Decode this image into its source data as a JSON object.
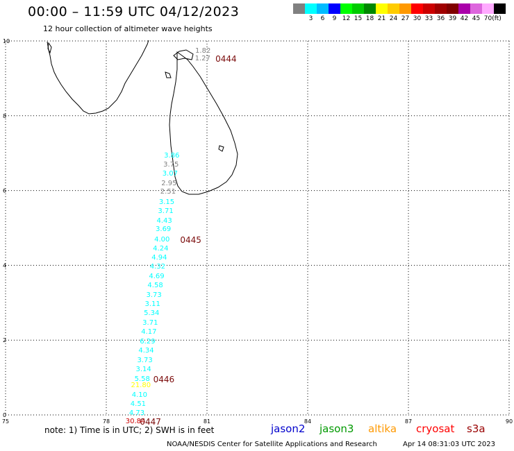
{
  "header": {
    "title": "00:00 – 11:59 UTC 04/12/2023",
    "subtitle": "12 hour collection of altimeter wave heights"
  },
  "legend": {
    "swatches": [
      {
        "color": "#808080",
        "label": ""
      },
      {
        "color": "#00ffff",
        "label": "3"
      },
      {
        "color": "#00bbff",
        "label": "6"
      },
      {
        "color": "#0000ff",
        "label": "9"
      },
      {
        "color": "#00ff00",
        "label": "12"
      },
      {
        "color": "#00cc00",
        "label": "15"
      },
      {
        "color": "#008800",
        "label": "18"
      },
      {
        "color": "#ffff00",
        "label": "21"
      },
      {
        "color": "#ffcc00",
        "label": "24"
      },
      {
        "color": "#ff9900",
        "label": "27"
      },
      {
        "color": "#ff0000",
        "label": "30"
      },
      {
        "color": "#cc0000",
        "label": "33"
      },
      {
        "color": "#a00000",
        "label": "36"
      },
      {
        "color": "#800000",
        "label": "39"
      },
      {
        "color": "#aa00aa",
        "label": "42"
      },
      {
        "color": "#dd66dd",
        "label": "45"
      },
      {
        "color": "#ffaaff",
        "label": "70"
      },
      {
        "color": "#000000",
        "label": "(ft)"
      }
    ]
  },
  "map": {
    "x_ticks": [
      "75",
      "78",
      "81",
      "84",
      "87",
      "90"
    ],
    "y_ticks": [
      "10",
      "8",
      "6",
      "4",
      "2",
      "0"
    ],
    "grid": true,
    "lon_range": [
      75,
      90
    ],
    "lat_range": [
      0,
      10
    ]
  },
  "swh_readings": [
    {
      "value": "1.82",
      "color": "#808080",
      "lon": 80.88,
      "lat": 9.72
    },
    {
      "value": "1.27",
      "color": "#808080",
      "lon": 80.87,
      "lat": 9.52
    },
    {
      "value": "3.86",
      "color": "#00ffff",
      "lon": 79.95,
      "lat": 6.92
    },
    {
      "value": "3.75",
      "color": "#808080",
      "lon": 79.93,
      "lat": 6.68
    },
    {
      "value": "3.07",
      "color": "#00ffff",
      "lon": 79.9,
      "lat": 6.43
    },
    {
      "value": "2.95",
      "color": "#808080",
      "lon": 79.87,
      "lat": 6.18
    },
    {
      "value": "2.51",
      "color": "#808080",
      "lon": 79.84,
      "lat": 5.95
    },
    {
      "value": "3.15",
      "color": "#00ffff",
      "lon": 79.8,
      "lat": 5.68
    },
    {
      "value": "3.71",
      "color": "#00ffff",
      "lon": 79.77,
      "lat": 5.43
    },
    {
      "value": "4.43",
      "color": "#00ffff",
      "lon": 79.73,
      "lat": 5.17
    },
    {
      "value": "3.69",
      "color": "#00ffff",
      "lon": 79.7,
      "lat": 4.95
    },
    {
      "value": "4.00",
      "color": "#00ffff",
      "lon": 79.66,
      "lat": 4.68
    },
    {
      "value": "4.24",
      "color": "#00ffff",
      "lon": 79.62,
      "lat": 4.43
    },
    {
      "value": "4.94",
      "color": "#00ffff",
      "lon": 79.58,
      "lat": 4.2
    },
    {
      "value": "4.32",
      "color": "#00ffff",
      "lon": 79.53,
      "lat": 3.95
    },
    {
      "value": "4.69",
      "color": "#00ffff",
      "lon": 79.5,
      "lat": 3.7
    },
    {
      "value": "4.58",
      "color": "#00ffff",
      "lon": 79.46,
      "lat": 3.45
    },
    {
      "value": "3.73",
      "color": "#00ffff",
      "lon": 79.42,
      "lat": 3.2
    },
    {
      "value": "3.11",
      "color": "#00ffff",
      "lon": 79.38,
      "lat": 2.95
    },
    {
      "value": "5.34",
      "color": "#00ffff",
      "lon": 79.35,
      "lat": 2.7
    },
    {
      "value": "3.71",
      "color": "#00ffff",
      "lon": 79.31,
      "lat": 2.45
    },
    {
      "value": "4.17",
      "color": "#00ffff",
      "lon": 79.27,
      "lat": 2.2
    },
    {
      "value": "6.29",
      "color": "#00ffff",
      "lon": 79.23,
      "lat": 1.95
    },
    {
      "value": "4.34",
      "color": "#00ffff",
      "lon": 79.19,
      "lat": 1.7
    },
    {
      "value": "3.73",
      "color": "#00ffff",
      "lon": 79.15,
      "lat": 1.45
    },
    {
      "value": "3.14",
      "color": "#00ffff",
      "lon": 79.11,
      "lat": 1.2
    },
    {
      "value": "5.58",
      "color": "#00ffff",
      "lon": 79.07,
      "lat": 0.95
    },
    {
      "value": "21.80",
      "color": "#ffff00",
      "lon": 79.03,
      "lat": 0.78
    },
    {
      "value": "4.10",
      "color": "#00ffff",
      "lon": 78.99,
      "lat": 0.52
    },
    {
      "value": "4.51",
      "color": "#00ffff",
      "lon": 78.95,
      "lat": 0.27
    },
    {
      "value": "4.73",
      "color": "#00ffff",
      "lon": 78.91,
      "lat": 0.03
    },
    {
      "value": "30.84",
      "color": "#cc0000",
      "lon": 78.87,
      "lat": -0.18
    }
  ],
  "pass_labels": [
    {
      "text": "0444",
      "lon": 81.25,
      "lat": 9.52
    },
    {
      "text": "0445",
      "lon": 80.2,
      "lat": 4.68
    },
    {
      "text": "0446",
      "lon": 79.4,
      "lat": 0.95
    },
    {
      "text": "0447",
      "lon": 79.0,
      "lat": -0.18
    }
  ],
  "footer": {
    "note": "note: 1) Time is in UTC; 2) SWH is in feet",
    "satellites": [
      {
        "name": "jason2",
        "color": "#0000cc"
      },
      {
        "name": "jason3",
        "color": "#009900"
      },
      {
        "name": "altika",
        "color": "#ff9900"
      },
      {
        "name": "cryosat",
        "color": "#ff0000"
      },
      {
        "name": "s3a",
        "color": "#990000"
      }
    ],
    "credit": "NOAA/NESDIS Center for Satellite Applications and Research",
    "timestamp": "Apr 14 08:31:03 UTC 2023"
  }
}
